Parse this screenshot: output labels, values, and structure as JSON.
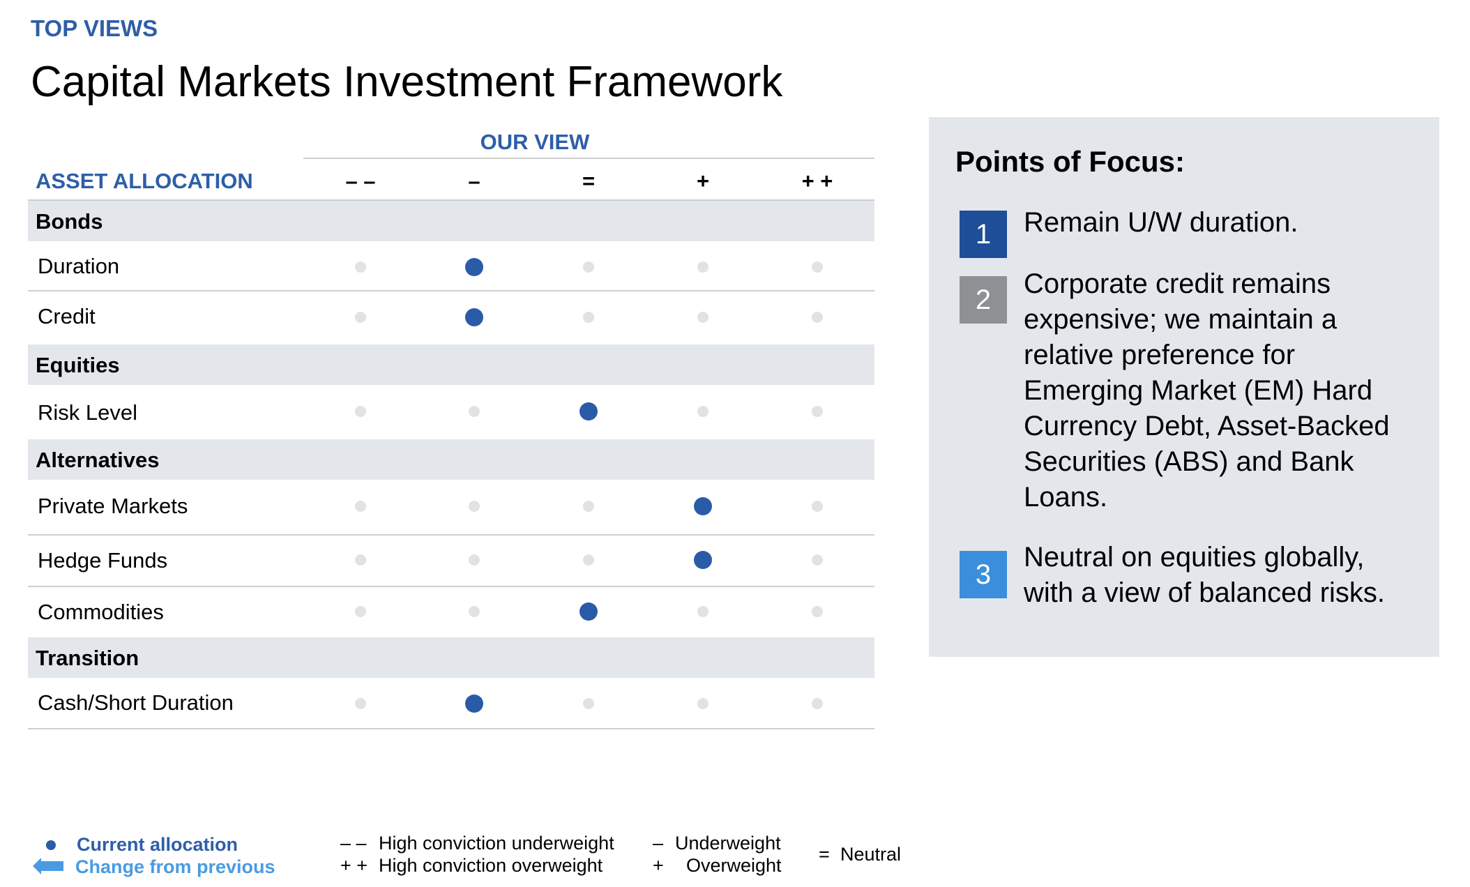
{
  "header": {
    "eyebrow": "TOP VIEWS",
    "title": "Capital Markets Investment Framework"
  },
  "table": {
    "our_view_label": "OUR VIEW",
    "asset_allocation_label": "ASSET ALLOCATION",
    "columns": [
      "– –",
      "–",
      "=",
      "+",
      "+ +"
    ],
    "categories": [
      {
        "name": "Bonds",
        "rows": [
          {
            "label": "Duration",
            "selected": 1
          },
          {
            "label": "Credit",
            "selected": 1
          }
        ]
      },
      {
        "name": "Equities",
        "rows": [
          {
            "label": "Risk Level",
            "selected": 2
          }
        ]
      },
      {
        "name": "Alternatives",
        "rows": [
          {
            "label": "Private Markets",
            "selected": 3
          },
          {
            "label": "Hedge Funds",
            "selected": 3
          },
          {
            "label": "Commodities",
            "selected": 2
          }
        ]
      },
      {
        "name": "Transition",
        "rows": [
          {
            "label": "Cash/Short Duration",
            "selected": 1
          }
        ]
      }
    ]
  },
  "panel": {
    "title": "Points of Focus:",
    "points": [
      {
        "num": "1",
        "text": "Remain U/W duration.",
        "color": "#1f4e98"
      },
      {
        "num": "2",
        "text": "Corporate credit remains expensive; we maintain a relative preference for Emerging Market (EM) Hard Currency Debt, Asset-Backed Securities (ABS) and Bank Loans.",
        "color": "#8f9093"
      },
      {
        "num": "3",
        "text": "Neutral on equities globally, with a view of balanced risks.",
        "color": "#3b8edb"
      }
    ]
  },
  "legend": {
    "current_allocation": "Current allocation",
    "change_from_previous": "Change from previous",
    "hc_under_symbol": "– –",
    "hc_under_text": "High conviction underweight",
    "hc_over_symbol": "+ +",
    "hc_over_text": "High conviction overweight",
    "under_symbol": "–",
    "under_text": "Underweight",
    "over_symbol": "+",
    "over_text": "Overweight",
    "neutral_symbol": "=",
    "neutral_text": "Neutral"
  },
  "colors": {
    "accent_blue": "#2e5ea8",
    "dot_active": "#2a5ba6",
    "dot_inactive": "#e2e2e2",
    "category_bg": "#e3e7ec",
    "arrow_blue": "#4a9be3"
  }
}
